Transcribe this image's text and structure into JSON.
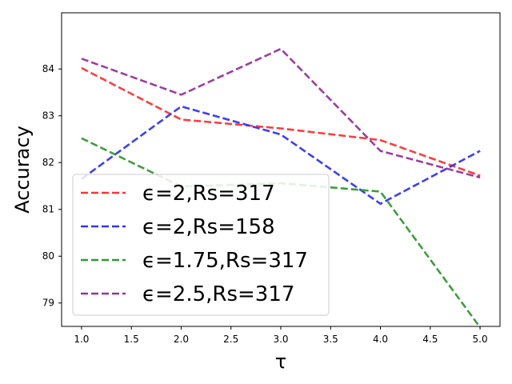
{
  "chart_data": {
    "type": "line",
    "title": "",
    "xlabel": "τ",
    "ylabel": "Accuracy",
    "xlim": [
      0.8,
      5.2
    ],
    "ylim": [
      78.5,
      85.2
    ],
    "x": [
      1.0,
      2.0,
      3.0,
      4.0,
      5.0
    ],
    "xticks": [
      "1.0",
      "1.5",
      "2.0",
      "2.5",
      "3.0",
      "3.5",
      "4.0",
      "4.5",
      "5.0"
    ],
    "yticks": [
      "79",
      "80",
      "81",
      "82",
      "83",
      "84"
    ],
    "grid": false,
    "legend_position": "lower-left",
    "line_style": "dashed",
    "series": [
      {
        "name": "ϵ=2,Rs=317",
        "color": "#ff3333",
        "values": [
          84.02,
          82.92,
          82.73,
          82.48,
          81.72
        ]
      },
      {
        "name": "ϵ=2,Rs=158",
        "color": "#3333ff",
        "values": [
          81.65,
          83.2,
          82.6,
          81.12,
          82.25
        ]
      },
      {
        "name": "ϵ=1.75,Rs=317",
        "color": "#339933",
        "values": [
          82.52,
          81.49,
          81.56,
          81.38,
          78.48
        ]
      },
      {
        "name": "ϵ=2.5,Rs=317",
        "color": "#993399",
        "values": [
          84.22,
          83.45,
          84.43,
          82.25,
          81.68
        ]
      }
    ]
  }
}
